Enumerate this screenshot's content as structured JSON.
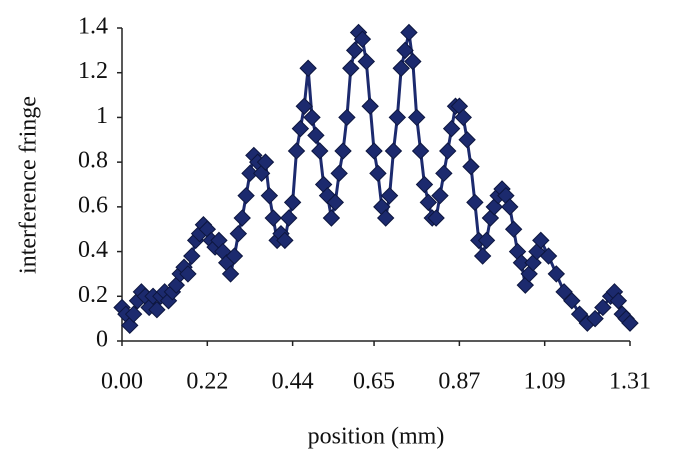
{
  "chart_data": {
    "type": "line",
    "xlabel": "position (mm)",
    "ylabel": "interference fringe",
    "xlim": [
      0,
      1.31
    ],
    "ylim": [
      0,
      1.4
    ],
    "xticks": [
      {
        "value": 0,
        "label": "0.00"
      },
      {
        "value": 0.22,
        "label": "0.22"
      },
      {
        "value": 0.44,
        "label": "0.44"
      },
      {
        "value": 0.65,
        "label": "0.65"
      },
      {
        "value": 0.87,
        "label": "0.87"
      },
      {
        "value": 1.09,
        "label": "1.09"
      },
      {
        "value": 1.31,
        "label": "1.31"
      }
    ],
    "yticks": [
      0,
      0.2,
      0.4,
      0.6,
      0.8,
      1,
      1.2,
      1.4
    ],
    "grid": false,
    "series": [
      {
        "color": "#1c2a6e",
        "x": [
          0.0,
          0.01,
          0.02,
          0.03,
          0.04,
          0.05,
          0.06,
          0.07,
          0.08,
          0.09,
          0.1,
          0.11,
          0.12,
          0.13,
          0.14,
          0.15,
          0.16,
          0.17,
          0.18,
          0.19,
          0.2,
          0.21,
          0.22,
          0.23,
          0.24,
          0.25,
          0.26,
          0.27,
          0.28,
          0.29,
          0.3,
          0.31,
          0.32,
          0.33,
          0.34,
          0.35,
          0.36,
          0.37,
          0.38,
          0.39,
          0.4,
          0.41,
          0.42,
          0.43,
          0.44,
          0.45,
          0.46,
          0.47,
          0.48,
          0.49,
          0.5,
          0.51,
          0.52,
          0.53,
          0.54,
          0.55,
          0.56,
          0.57,
          0.58,
          0.59,
          0.6,
          0.61,
          0.62,
          0.63,
          0.64,
          0.65,
          0.66,
          0.67,
          0.68,
          0.69,
          0.7,
          0.71,
          0.72,
          0.73,
          0.74,
          0.75,
          0.76,
          0.77,
          0.78,
          0.79,
          0.8,
          0.81,
          0.82,
          0.83,
          0.84,
          0.85,
          0.86,
          0.87,
          0.88,
          0.89,
          0.9,
          0.91,
          0.92,
          0.93,
          0.94,
          0.95,
          0.96,
          0.97,
          0.98,
          0.99,
          1.0,
          1.01,
          1.02,
          1.03,
          1.04,
          1.05,
          1.06,
          1.07,
          1.08,
          1.1,
          1.12,
          1.14,
          1.16,
          1.18,
          1.2,
          1.22,
          1.24,
          1.26,
          1.27,
          1.28,
          1.29,
          1.3,
          1.31
        ],
        "values": [
          0.15,
          0.12,
          0.07,
          0.12,
          0.18,
          0.22,
          0.2,
          0.15,
          0.2,
          0.14,
          0.2,
          0.22,
          0.18,
          0.22,
          0.25,
          0.3,
          0.33,
          0.3,
          0.38,
          0.45,
          0.48,
          0.52,
          0.5,
          0.45,
          0.42,
          0.45,
          0.4,
          0.35,
          0.3,
          0.38,
          0.48,
          0.55,
          0.65,
          0.75,
          0.83,
          0.8,
          0.75,
          0.8,
          0.65,
          0.55,
          0.45,
          0.48,
          0.45,
          0.55,
          0.62,
          0.85,
          0.95,
          1.05,
          1.22,
          1.0,
          0.92,
          0.85,
          0.7,
          0.65,
          0.55,
          0.62,
          0.75,
          0.85,
          1.0,
          1.22,
          1.3,
          1.38,
          1.35,
          1.25,
          1.05,
          0.85,
          0.75,
          0.6,
          0.55,
          0.65,
          0.85,
          1.0,
          1.22,
          1.3,
          1.38,
          1.25,
          1.0,
          0.85,
          0.7,
          0.62,
          0.55,
          0.55,
          0.65,
          0.75,
          0.85,
          0.95,
          1.05,
          1.05,
          1.0,
          0.9,
          0.78,
          0.62,
          0.45,
          0.38,
          0.45,
          0.55,
          0.6,
          0.65,
          0.68,
          0.65,
          0.6,
          0.5,
          0.4,
          0.35,
          0.25,
          0.3,
          0.35,
          0.4,
          0.45,
          0.38,
          0.3,
          0.22,
          0.18,
          0.12,
          0.08,
          0.1,
          0.15,
          0.2,
          0.22,
          0.18,
          0.12,
          0.1,
          0.08
        ]
      }
    ]
  }
}
